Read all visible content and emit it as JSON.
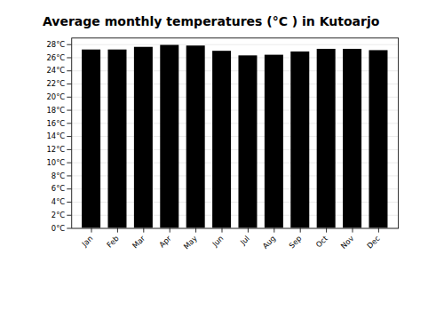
{
  "chart_data": {
    "type": "bar",
    "title": "Average monthly temperatures (°C ) in Kutoarjo",
    "categories": [
      "Jan",
      "Feb",
      "Mar",
      "Apr",
      "May",
      "Jun",
      "Jul",
      "Aug",
      "Sep",
      "Oct",
      "Nov",
      "Dec"
    ],
    "values": [
      27.2,
      27.2,
      27.6,
      27.9,
      27.8,
      27.0,
      26.3,
      26.4,
      26.9,
      27.3,
      27.3,
      27.1
    ],
    "ylim": [
      0,
      29
    ],
    "yticks": [
      {
        "value": 0,
        "label": "0°C"
      },
      {
        "value": 2,
        "label": "2°C"
      },
      {
        "value": 4,
        "label": "4°C"
      },
      {
        "value": 6,
        "label": "6°C"
      },
      {
        "value": 8,
        "label": "8°C"
      },
      {
        "value": 10,
        "label": "10°C"
      },
      {
        "value": 12,
        "label": "12°C"
      },
      {
        "value": 14,
        "label": "14°C"
      },
      {
        "value": 16,
        "label": "16°C"
      },
      {
        "value": 18,
        "label": "18°C"
      },
      {
        "value": 20,
        "label": "20°C"
      },
      {
        "value": 22,
        "label": "22°C"
      },
      {
        "value": 24,
        "label": "24°C"
      },
      {
        "value": 26,
        "label": "26°C"
      },
      {
        "value": 28,
        "label": "28°C"
      }
    ],
    "grid": true
  }
}
